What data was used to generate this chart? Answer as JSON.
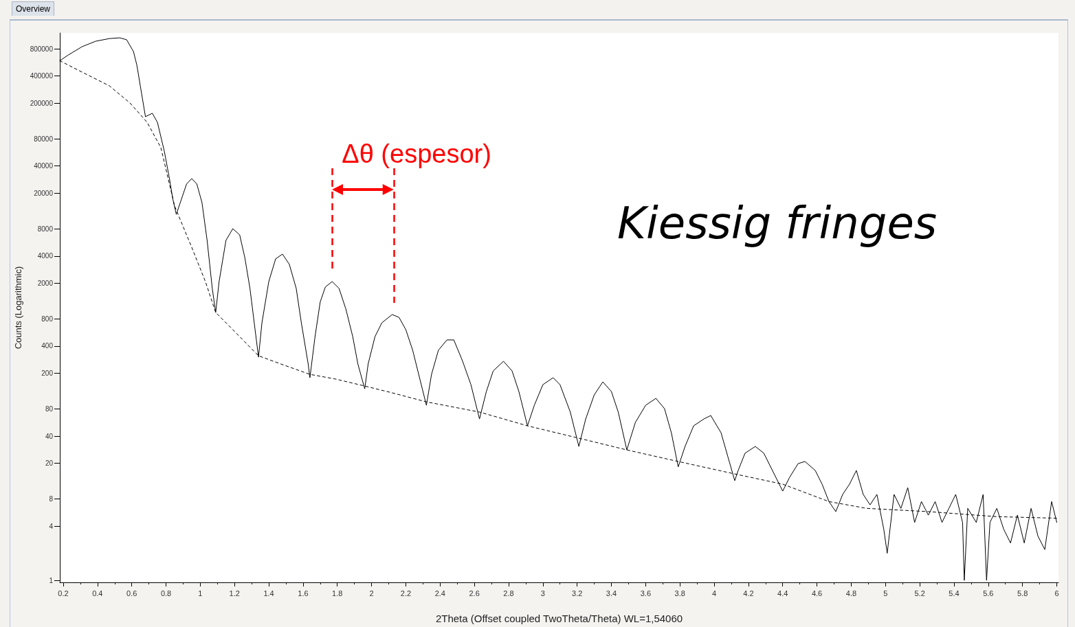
{
  "chart_data": {
    "type": "line",
    "xlabel": "2Theta (Offset coupled TwoTheta/Theta) WL=1,54060",
    "ylabel": "Counts (Logarithmic)",
    "annotations": [
      "Overview",
      "Δθ (espesor)",
      "Kiessig fringes"
    ],
    "log": "y",
    "grid": false,
    "marker": "none",
    "xlim": [
      0.18,
      6.01
    ],
    "xticks": [
      0.2,
      0.4,
      0.6,
      0.8,
      1,
      1.2,
      1.4,
      1.6,
      1.8,
      2,
      2.2,
      2.4,
      2.6,
      2.8,
      3,
      3.2,
      3.4,
      3.6,
      3.8,
      4,
      4.2,
      4.4,
      4.6,
      4.8,
      5,
      5.2,
      5.4,
      5.6,
      5.8,
      6
    ],
    "ylim": [
      0.95,
      1200000
    ],
    "yticks": [
      1,
      4,
      8,
      20,
      40,
      80,
      200,
      400,
      800,
      2000,
      4000,
      8000,
      20000,
      40000,
      80000,
      200000,
      400000,
      800000
    ],
    "ref_lines": [
      {
        "axis": "x",
        "value": 1.77,
        "label": null,
        "color": "#ff0000",
        "line_style": "dashed"
      },
      {
        "axis": "x",
        "value": 2.13,
        "label": null,
        "color": "#ff0000",
        "line_style": "dashed"
      }
    ],
    "series": [
      {
        "color": "#000000",
        "line_style": "solid",
        "x": [
          0.18,
          0.23,
          0.31,
          0.39,
          0.47,
          0.53,
          0.57,
          0.61,
          0.63,
          0.65,
          0.68,
          0.72,
          0.75,
          0.79,
          0.82,
          0.84,
          0.86,
          0.89,
          0.92,
          0.95,
          0.98,
          1.01,
          1.04,
          1.07,
          1.09,
          1.11,
          1.15,
          1.19,
          1.23,
          1.26,
          1.29,
          1.32,
          1.34,
          1.36,
          1.4,
          1.44,
          1.48,
          1.52,
          1.56,
          1.59,
          1.63,
          1.64,
          1.67,
          1.7,
          1.73,
          1.77,
          1.81,
          1.85,
          1.89,
          1.92,
          1.96,
          1.98,
          2.02,
          2.06,
          2.12,
          2.16,
          2.2,
          2.24,
          2.28,
          2.32,
          2.35,
          2.39,
          2.44,
          2.48,
          2.53,
          2.58,
          2.63,
          2.67,
          2.71,
          2.77,
          2.82,
          2.86,
          2.91,
          2.95,
          3.0,
          3.06,
          3.1,
          3.16,
          3.21,
          3.25,
          3.3,
          3.35,
          3.4,
          3.44,
          3.49,
          3.54,
          3.6,
          3.66,
          3.71,
          3.75,
          3.79,
          3.83,
          3.88,
          3.94,
          3.98,
          4.04,
          4.08,
          4.12,
          4.14,
          4.18,
          4.24,
          4.29,
          4.34,
          4.4,
          4.44,
          4.49,
          4.53,
          4.59,
          4.63,
          4.67,
          4.71,
          4.75,
          4.79,
          4.83,
          4.87,
          4.91,
          4.95,
          4.99,
          5.01,
          5.05,
          5.09,
          5.13,
          5.17,
          5.21,
          5.25,
          5.29,
          5.33,
          5.37,
          5.41,
          5.45,
          5.46,
          5.48,
          5.53,
          5.57,
          5.59,
          5.61,
          5.65,
          5.69,
          5.73,
          5.77,
          5.81,
          5.85,
          5.89,
          5.93,
          5.97,
          6.0
        ],
        "values": [
          590000,
          684000,
          845000,
          972000,
          1040000,
          1060000,
          1010000,
          747000,
          526000,
          310000,
          141000,
          154000,
          122000,
          58500,
          29000,
          17100,
          11600,
          17100,
          25200,
          29000,
          25200,
          15700,
          5970,
          1750,
          944,
          2080,
          5970,
          8040,
          6870,
          3850,
          1750,
          608,
          301,
          725,
          2080,
          3720,
          4200,
          3230,
          1750,
          725,
          253,
          178,
          510,
          1230,
          1810,
          2080,
          1750,
          1030,
          510,
          253,
          134,
          253,
          510,
          725,
          895,
          834,
          608,
          359,
          178,
          88,
          194,
          359,
          468,
          468,
          276,
          149,
          62,
          125,
          212,
          271,
          212,
          125,
          52,
          88,
          149,
          178,
          149,
          74,
          30.7,
          62,
          115,
          160,
          125,
          74,
          28.1,
          56.8,
          88,
          105,
          80.7,
          43.6,
          18.2,
          30.7,
          52,
          62,
          67.7,
          43.6,
          23.6,
          12.8,
          16.6,
          25.8,
          30.7,
          25.8,
          16.6,
          9.8,
          13.9,
          19.8,
          20.9,
          16.6,
          11.7,
          7.5,
          5.8,
          9.0,
          11.7,
          16.6,
          9.0,
          6.9,
          9.0,
          3.7,
          2.0,
          9.0,
          6.3,
          10.7,
          4.4,
          7.5,
          5.3,
          7.5,
          4.4,
          6.3,
          9.0,
          4.4,
          1.0,
          6.3,
          4.4,
          9.0,
          1.0,
          4.4,
          6.3,
          3.7,
          2.6,
          5.3,
          2.6,
          6.3,
          3.1,
          2.2,
          7.5,
          4.4
        ]
      },
      {
        "color": "#000000",
        "line_style": "dashed",
        "x": [
          0.18,
          0.31,
          0.47,
          0.59,
          0.69,
          0.77,
          0.85,
          0.95,
          1.03,
          1.09,
          1.19,
          1.34,
          1.47,
          1.64,
          1.79,
          1.96,
          2.12,
          2.32,
          2.63,
          2.91,
          3.21,
          3.49,
          3.79,
          4.12,
          4.4,
          4.67,
          4.89,
          5.25,
          5.65,
          6.0
        ],
        "values": [
          590000,
          441000,
          310000,
          200000,
          122000,
          63900,
          14400,
          5000,
          2080,
          944,
          608,
          312,
          253,
          194,
          172,
          144,
          121,
          96,
          74,
          52,
          37.9,
          28.1,
          20.9,
          15.2,
          11.7,
          7.5,
          6.3,
          5.8,
          5.1,
          4.9
        ]
      }
    ]
  }
}
